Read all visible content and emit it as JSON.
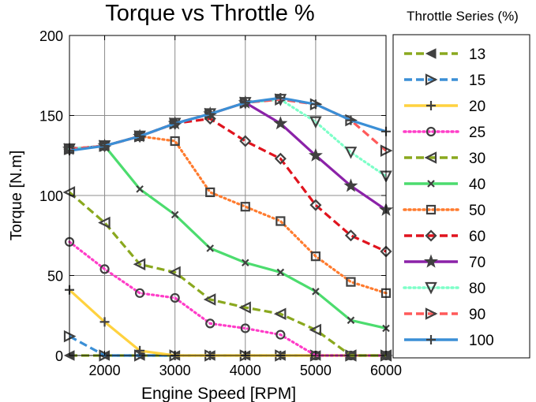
{
  "chart_data": {
    "type": "line",
    "title": "Torque vs Throttle %",
    "xlabel": "Engine Speed [RPM]",
    "ylabel": "Torque  [N.m]",
    "xlim": [
      1500,
      6000
    ],
    "ylim": [
      0,
      200
    ],
    "xticks": [
      2000,
      3000,
      4000,
      5000,
      6000
    ],
    "yticks": [
      0,
      50,
      100,
      150,
      200
    ],
    "grid": true,
    "legend_title": "Throttle Series (%)",
    "legend_position": "right, outside plot",
    "x": [
      1500,
      2000,
      2500,
      3000,
      3500,
      4000,
      4500,
      5000,
      5500,
      6000
    ],
    "series": [
      {
        "name": "13",
        "color": "#8aa81e",
        "dash": "dashed",
        "marker": "tri-left-filled",
        "values": [
          0,
          0,
          0,
          0,
          0,
          0,
          0,
          0,
          0,
          0
        ]
      },
      {
        "name": "15",
        "color": "#3b8fd6",
        "dash": "dashed",
        "marker": "tri-right",
        "values": [
          12,
          0,
          0,
          0,
          0,
          0,
          0,
          0,
          0,
          0
        ]
      },
      {
        "name": "20",
        "color": "#ffd23f",
        "dash": "solid",
        "marker": "plus",
        "values": [
          41,
          21,
          3,
          0,
          0,
          0,
          0,
          0,
          0,
          0
        ]
      },
      {
        "name": "25",
        "color": "#ff3dc8",
        "dash": "dotted",
        "marker": "circle",
        "values": [
          71,
          54,
          39,
          36,
          20,
          17,
          13,
          0,
          0,
          0
        ]
      },
      {
        "name": "30",
        "color": "#8aa81e",
        "dash": "dashed",
        "marker": "tri-left",
        "values": [
          102,
          83,
          57,
          52,
          35,
          30,
          26,
          16,
          0,
          0
        ]
      },
      {
        "name": "40",
        "color": "#4cdc6e",
        "dash": "solid",
        "marker": "x",
        "values": [
          129,
          131,
          104,
          88,
          67,
          58,
          52,
          40,
          22,
          17
        ]
      },
      {
        "name": "50",
        "color": "#ff7b2e",
        "dash": "dotted",
        "marker": "square",
        "values": [
          129,
          131,
          137,
          134,
          102,
          93,
          84,
          62,
          46,
          39
        ]
      },
      {
        "name": "60",
        "color": "#e0141e",
        "dash": "dashed",
        "marker": "diamond",
        "values": [
          129,
          131,
          137,
          145,
          148,
          134,
          123,
          94,
          75,
          65
        ]
      },
      {
        "name": "70",
        "color": "#8b22a8",
        "dash": "solid",
        "marker": "star",
        "values": [
          129,
          131,
          137,
          145,
          151,
          158,
          145,
          125,
          106,
          91
        ]
      },
      {
        "name": "80",
        "color": "#7dffc8",
        "dash": "dotted",
        "marker": "tri-down",
        "values": [
          129,
          131,
          137,
          145,
          151,
          158,
          160,
          146,
          127,
          112
        ]
      },
      {
        "name": "90",
        "color": "#ff5a5a",
        "dash": "dashed",
        "marker": "tri-right",
        "values": [
          129,
          131,
          137,
          145,
          151,
          158,
          160,
          157,
          147,
          128
        ]
      },
      {
        "name": "100",
        "color": "#3b8fd6",
        "dash": "solid",
        "marker": "plus",
        "values": [
          128,
          131,
          137,
          145,
          151,
          158,
          161,
          157,
          147,
          140
        ]
      }
    ]
  }
}
